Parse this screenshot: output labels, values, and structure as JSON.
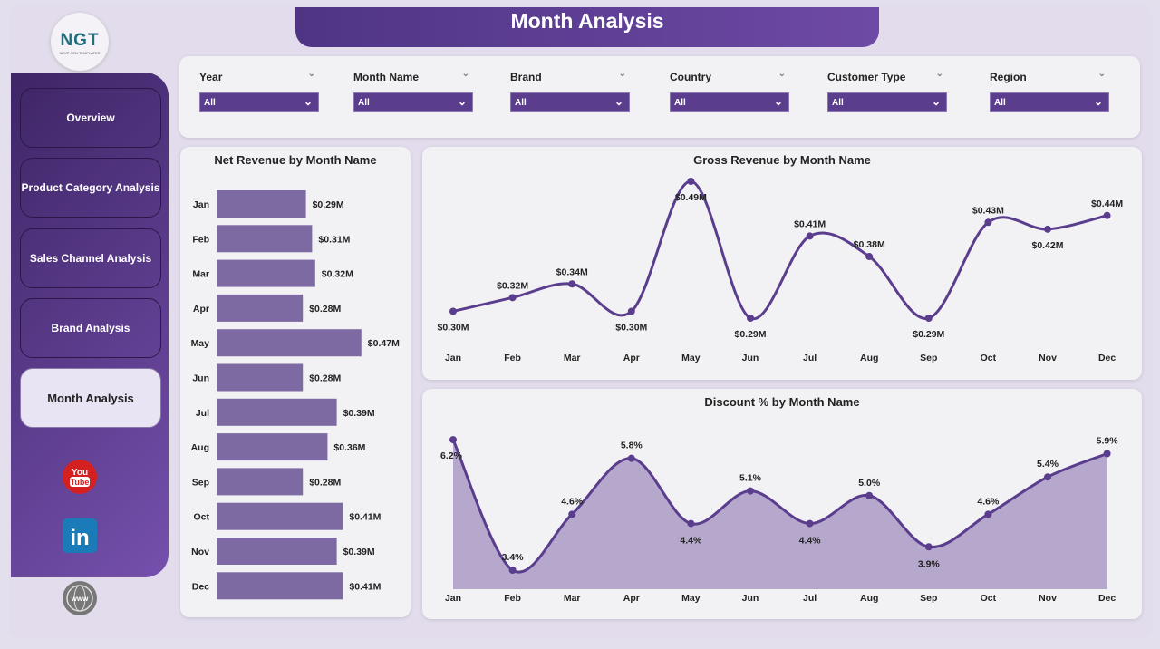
{
  "header": {
    "title": "Month Analysis"
  },
  "logo": {
    "text": "NGT",
    "subtitle": "NEXT GEN TEMPLATES"
  },
  "sidebar": {
    "items": [
      {
        "label": "Overview"
      },
      {
        "label": "Product Category Analysis"
      },
      {
        "label": "Sales Channel Analysis"
      },
      {
        "label": "Brand Analysis"
      },
      {
        "label": "Month Analysis",
        "active": true
      }
    ],
    "social": [
      "youtube-icon",
      "linkedin-icon",
      "website-icon"
    ]
  },
  "filters": [
    {
      "label": "Year",
      "value": "All"
    },
    {
      "label": "Month Name",
      "value": "All"
    },
    {
      "label": "Brand",
      "value": "All"
    },
    {
      "label": "Country",
      "value": "All"
    },
    {
      "label": "Customer Type",
      "value": "All"
    },
    {
      "label": "Region",
      "value": "All"
    }
  ],
  "colors": {
    "accent": "#5a3d8c",
    "bar": "#7e6aa3",
    "line": "#5b3d8e",
    "area": "#b6a8cc"
  },
  "chart_data": [
    {
      "type": "bar",
      "orientation": "horizontal",
      "title": "Net Revenue by Month Name",
      "categories": [
        "Jan",
        "Feb",
        "Mar",
        "Apr",
        "May",
        "Jun",
        "Jul",
        "Aug",
        "Sep",
        "Oct",
        "Nov",
        "Dec"
      ],
      "values": [
        0.29,
        0.31,
        0.32,
        0.28,
        0.47,
        0.28,
        0.39,
        0.36,
        0.28,
        0.41,
        0.39,
        0.41
      ],
      "labels": [
        "$0.29M",
        "$0.31M",
        "$0.32M",
        "$0.28M",
        "$0.47M",
        "$0.28M",
        "$0.39M",
        "$0.36M",
        "$0.28M",
        "$0.41M",
        "$0.39M",
        "$0.41M"
      ]
    },
    {
      "type": "line",
      "title": "Gross Revenue by Month Name",
      "categories": [
        "Jan",
        "Feb",
        "Mar",
        "Apr",
        "May",
        "Jun",
        "Jul",
        "Aug",
        "Sep",
        "Oct",
        "Nov",
        "Dec"
      ],
      "values": [
        0.3,
        0.32,
        0.34,
        0.3,
        0.49,
        0.29,
        0.41,
        0.38,
        0.29,
        0.43,
        0.42,
        0.44
      ],
      "labels": [
        "$0.30M",
        "$0.32M",
        "$0.34M",
        "$0.30M",
        "$0.49M",
        "$0.29M",
        "$0.41M",
        "$0.38M",
        "$0.29M",
        "$0.43M",
        "$0.42M",
        "$0.44M"
      ]
    },
    {
      "type": "area",
      "title": "Discount % by Month Name",
      "categories": [
        "Jan",
        "Feb",
        "Mar",
        "Apr",
        "May",
        "Jun",
        "Jul",
        "Aug",
        "Sep",
        "Oct",
        "Nov",
        "Dec"
      ],
      "values": [
        6.2,
        3.4,
        4.6,
        5.8,
        4.4,
        5.1,
        4.4,
        5.0,
        3.9,
        4.6,
        5.4,
        5.9
      ],
      "labels": [
        "6.2%",
        "3.4%",
        "4.6%",
        "5.8%",
        "4.4%",
        "5.1%",
        "4.4%",
        "5.0%",
        "3.9%",
        "4.6%",
        "5.4%",
        "5.9%"
      ]
    }
  ]
}
